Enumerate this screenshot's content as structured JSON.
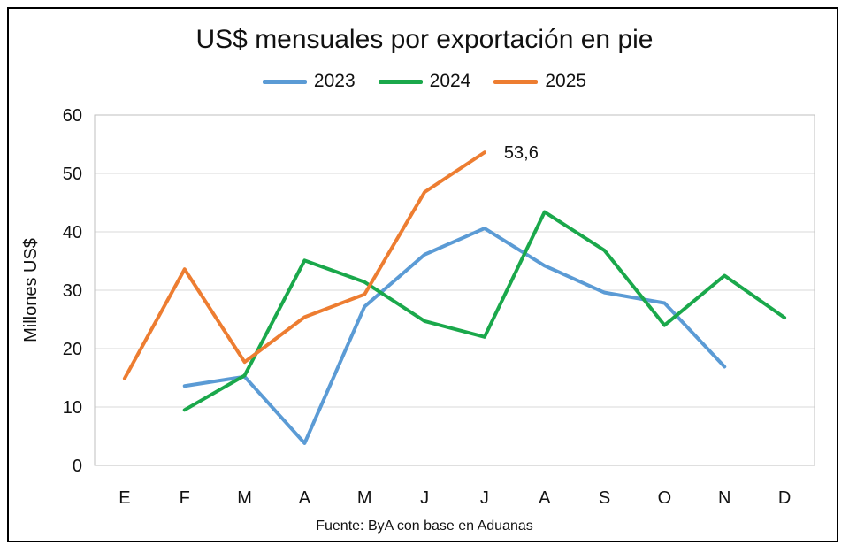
{
  "chart_data": {
    "type": "line",
    "title": "US$ mensuales por exportación en pie",
    "ylabel": "Millones US$",
    "xlabel": "",
    "categories": [
      "E",
      "F",
      "M",
      "A",
      "M",
      "J",
      "J",
      "A",
      "S",
      "O",
      "N",
      "D"
    ],
    "ylim": [
      0,
      60
    ],
    "yticks": [
      0,
      10,
      20,
      30,
      40,
      50,
      60
    ],
    "grid": true,
    "legend": "top",
    "series": [
      {
        "name": "2023",
        "color": "#5B9BD5",
        "values": [
          null,
          13.6,
          15.2,
          3.8,
          27.2,
          36.1,
          40.6,
          34.2,
          29.6,
          27.8,
          16.9,
          null
        ]
      },
      {
        "name": "2024",
        "color": "#1AA84B",
        "values": [
          null,
          9.5,
          15.4,
          35.1,
          31.4,
          24.7,
          22.0,
          43.4,
          36.8,
          24.0,
          32.5,
          25.3
        ]
      },
      {
        "name": "2025",
        "color": "#ED7D31",
        "values": [
          14.9,
          33.6,
          17.7,
          25.4,
          29.3,
          46.8,
          53.6,
          null,
          null,
          null,
          null,
          null
        ]
      }
    ],
    "annotations": [
      {
        "series": "2025",
        "index": 6,
        "text": "53,6"
      }
    ],
    "source": "Fuente: ByA con base en Aduanas"
  }
}
